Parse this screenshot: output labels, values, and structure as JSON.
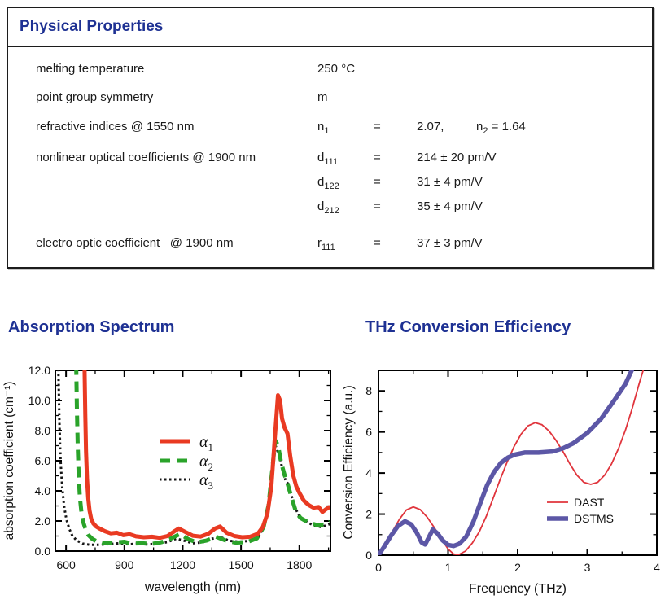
{
  "table": {
    "title": "Physical Properties",
    "rows": [
      {
        "label": "melting temperature",
        "value": "250 °C"
      },
      {
        "label": "point group symmetry",
        "value": "m"
      },
      {
        "label": "refractive indices @ 1550 nm",
        "sym_base": "n",
        "sym_sub": "1",
        "eq": "=",
        "value": "2.07,",
        "extra": {
          "sym_base": "n",
          "sym_sub": "2",
          "eq": " = ",
          "value": "1.64"
        }
      },
      {
        "label": "nonlinear optical coefficients @ 1900 nm",
        "entries": [
          {
            "sym_base": "d",
            "sym_sub": "111",
            "eq": "=",
            "value": "214 ± 20 pm/V"
          },
          {
            "sym_base": "d",
            "sym_sub": "122",
            "eq": "=",
            "value": "31 ± 4 pm/V"
          },
          {
            "sym_base": "d",
            "sym_sub": "212",
            "eq": "=",
            "value": "35 ± 4 pm/V"
          }
        ]
      },
      {
        "label": "electro optic coefficient   @ 1900 nm",
        "sym_base": "r",
        "sym_sub": "111",
        "eq": "=",
        "value": "37 ± 3 pm/V"
      }
    ]
  },
  "colors": {
    "heading_blue": "#1e3193",
    "text": "#1a1a1a",
    "alpha1_red": "#e93a22",
    "alpha2_green": "#2aa32a",
    "alpha3_black": "#151515",
    "dast_red": "#e0343c",
    "dstms_purple": "#5c57a6"
  },
  "chart_data": [
    {
      "type": "line",
      "title": "Absorption Spectrum",
      "xlabel": "wavelength (nm)",
      "ylabel": "absorption coefficient (cm⁻¹)",
      "xlim": [
        545,
        1960
      ],
      "ylim": [
        0,
        12
      ],
      "grid": false,
      "legend_position": "inside center-left",
      "x_ticks": [
        600,
        900,
        1200,
        1500,
        1800
      ],
      "x_tick_labels": [
        "600",
        "900",
        "1200",
        "1500",
        "1800"
      ],
      "x_minor_ticks": [
        750,
        1050,
        1350,
        1650,
        1950
      ],
      "y_ticks": [
        0,
        2,
        4,
        6,
        8,
        10,
        12
      ],
      "y_tick_labels": [
        "0.0",
        "2.0",
        "4.0",
        "6.0",
        "8.0",
        "10.0",
        "12.0"
      ],
      "y_minor_ticks": [
        1,
        3,
        5,
        7,
        9,
        11
      ],
      "series": [
        {
          "name": "alpha1",
          "legend_base": "α",
          "legend_sub": "1",
          "color": "#e93a22",
          "width": 5,
          "dash": null,
          "points": [
            [
              695,
              12.4
            ],
            [
              699,
              9.0
            ],
            [
              703,
              6.6
            ],
            [
              708,
              4.8
            ],
            [
              714,
              3.5
            ],
            [
              721,
              2.7
            ],
            [
              729,
              2.15
            ],
            [
              741,
              1.82
            ],
            [
              756,
              1.62
            ],
            [
              776,
              1.47
            ],
            [
              800,
              1.32
            ],
            [
              830,
              1.18
            ],
            [
              862,
              1.22
            ],
            [
              895,
              1.06
            ],
            [
              926,
              1.12
            ],
            [
              960,
              0.98
            ],
            [
              1000,
              0.92
            ],
            [
              1042,
              0.95
            ],
            [
              1082,
              0.88
            ],
            [
              1122,
              1.0
            ],
            [
              1156,
              1.3
            ],
            [
              1180,
              1.5
            ],
            [
              1212,
              1.28
            ],
            [
              1252,
              1.02
            ],
            [
              1292,
              0.96
            ],
            [
              1332,
              1.15
            ],
            [
              1366,
              1.5
            ],
            [
              1392,
              1.63
            ],
            [
              1426,
              1.22
            ],
            [
              1466,
              1.0
            ],
            [
              1506,
              0.92
            ],
            [
              1546,
              0.95
            ],
            [
              1586,
              1.15
            ],
            [
              1612,
              1.6
            ],
            [
              1636,
              2.5
            ],
            [
              1656,
              4.3
            ],
            [
              1672,
              7.2
            ],
            [
              1690,
              10.35
            ],
            [
              1701,
              10.0
            ],
            [
              1711,
              8.8
            ],
            [
              1724,
              8.2
            ],
            [
              1739,
              7.8
            ],
            [
              1753,
              6.3
            ],
            [
              1769,
              5.0
            ],
            [
              1784,
              4.3
            ],
            [
              1801,
              3.85
            ],
            [
              1823,
              3.35
            ],
            [
              1849,
              3.05
            ],
            [
              1873,
              2.88
            ],
            [
              1899,
              2.93
            ],
            [
              1919,
              2.6
            ],
            [
              1939,
              2.8
            ],
            [
              1958,
              2.95
            ]
          ]
        },
        {
          "name": "alpha2",
          "legend_base": "α",
          "legend_sub": "2",
          "color": "#2aa32a",
          "width": 5,
          "dash": "13 8",
          "points": [
            [
              652,
              12.4
            ],
            [
              656,
              9.4
            ],
            [
              660,
              7.0
            ],
            [
              665,
              5.0
            ],
            [
              671,
              3.6
            ],
            [
              679,
              2.6
            ],
            [
              689,
              1.9
            ],
            [
              701,
              1.42
            ],
            [
              716,
              1.05
            ],
            [
              736,
              0.8
            ],
            [
              762,
              0.62
            ],
            [
              792,
              0.52
            ],
            [
              850,
              0.56
            ],
            [
              900,
              0.62
            ],
            [
              942,
              0.5
            ],
            [
              992,
              0.52
            ],
            [
              1042,
              0.48
            ],
            [
              1092,
              0.6
            ],
            [
              1142,
              0.85
            ],
            [
              1188,
              1.15
            ],
            [
              1227,
              0.8
            ],
            [
              1272,
              0.58
            ],
            [
              1322,
              0.7
            ],
            [
              1372,
              0.95
            ],
            [
              1422,
              0.7
            ],
            [
              1472,
              0.56
            ],
            [
              1532,
              0.6
            ],
            [
              1582,
              0.85
            ],
            [
              1616,
              1.6
            ],
            [
              1641,
              3.0
            ],
            [
              1659,
              5.2
            ],
            [
              1676,
              7.35
            ],
            [
              1691,
              7.0
            ],
            [
              1706,
              5.9
            ],
            [
              1723,
              5.1
            ],
            [
              1741,
              4.4
            ],
            [
              1761,
              3.5
            ],
            [
              1783,
              2.6
            ],
            [
              1806,
              2.2
            ],
            [
              1846,
              1.9
            ],
            [
              1886,
              1.75
            ],
            [
              1926,
              1.72
            ],
            [
              1957,
              1.95
            ]
          ]
        },
        {
          "name": "alpha3",
          "legend_base": "α",
          "legend_sub": "3",
          "color": "#151515",
          "width": 3,
          "dash": "2.5 3.5",
          "points": [
            [
              560,
              12.4
            ],
            [
              566,
              8.5
            ],
            [
              572,
              6.0
            ],
            [
              580,
              4.3
            ],
            [
              590,
              3.0
            ],
            [
              602,
              2.1
            ],
            [
              616,
              1.5
            ],
            [
              633,
              1.0
            ],
            [
              656,
              0.7
            ],
            [
              686,
              0.5
            ],
            [
              721,
              0.42
            ],
            [
              761,
              0.42
            ],
            [
              821,
              0.46
            ],
            [
              871,
              0.52
            ],
            [
              921,
              0.45
            ],
            [
              971,
              0.5
            ],
            [
              1021,
              0.44
            ],
            [
              1071,
              0.5
            ],
            [
              1121,
              0.6
            ],
            [
              1166,
              0.82
            ],
            [
              1201,
              0.72
            ],
            [
              1251,
              0.52
            ],
            [
              1301,
              0.58
            ],
            [
              1351,
              0.82
            ],
            [
              1396,
              0.92
            ],
            [
              1441,
              0.68
            ],
            [
              1491,
              0.62
            ],
            [
              1546,
              0.68
            ],
            [
              1591,
              0.95
            ],
            [
              1621,
              1.7
            ],
            [
              1646,
              3.3
            ],
            [
              1663,
              6.2
            ],
            [
              1673,
              7.15
            ],
            [
              1686,
              6.7
            ],
            [
              1701,
              6.2
            ],
            [
              1716,
              5.2
            ],
            [
              1729,
              4.7
            ],
            [
              1743,
              4.45
            ],
            [
              1759,
              3.7
            ],
            [
              1779,
              2.85
            ],
            [
              1801,
              2.3
            ],
            [
              1836,
              1.95
            ],
            [
              1871,
              1.72
            ],
            [
              1911,
              1.6
            ],
            [
              1941,
              1.72
            ],
            [
              1958,
              1.8
            ]
          ]
        }
      ]
    },
    {
      "type": "line",
      "title": "THz Conversion Efficiency",
      "xlabel": "Frequency (THz)",
      "ylabel": "Conversion Efficiency (a.u.)",
      "xlim": [
        0,
        4
      ],
      "ylim": [
        0,
        9
      ],
      "grid": false,
      "legend_position": "inside lower-right",
      "x_ticks": [
        0,
        1,
        2,
        3,
        4
      ],
      "x_tick_labels": [
        "0",
        "1",
        "2",
        "3",
        "4"
      ],
      "x_minor_ticks": [
        0.5,
        1.5,
        2.5,
        3.5
      ],
      "y_ticks": [
        0,
        2,
        4,
        6,
        8
      ],
      "y_tick_labels": [
        "0",
        "2",
        "4",
        "6",
        "8"
      ],
      "y_minor_ticks": [
        1,
        3,
        5,
        7,
        9
      ],
      "series": [
        {
          "name": "DAST",
          "legend_label": "DAST",
          "color": "#e0343c",
          "width": 1.8,
          "dash": null,
          "points": [
            [
              0,
              0
            ],
            [
              0.1,
              0.5
            ],
            [
              0.2,
              1.15
            ],
            [
              0.3,
              1.75
            ],
            [
              0.4,
              2.2
            ],
            [
              0.5,
              2.35
            ],
            [
              0.6,
              2.22
            ],
            [
              0.7,
              1.85
            ],
            [
              0.8,
              1.35
            ],
            [
              0.9,
              0.8
            ],
            [
              1.0,
              0.3
            ],
            [
              1.08,
              0.05
            ],
            [
              1.15,
              0.02
            ],
            [
              1.25,
              0.2
            ],
            [
              1.35,
              0.6
            ],
            [
              1.45,
              1.15
            ],
            [
              1.55,
              1.9
            ],
            [
              1.65,
              2.8
            ],
            [
              1.75,
              3.7
            ],
            [
              1.85,
              4.55
            ],
            [
              1.95,
              5.3
            ],
            [
              2.05,
              5.9
            ],
            [
              2.15,
              6.3
            ],
            [
              2.25,
              6.45
            ],
            [
              2.35,
              6.35
            ],
            [
              2.45,
              6.05
            ],
            [
              2.55,
              5.6
            ],
            [
              2.65,
              5.05
            ],
            [
              2.75,
              4.45
            ],
            [
              2.85,
              3.9
            ],
            [
              2.95,
              3.55
            ],
            [
              3.05,
              3.45
            ],
            [
              3.15,
              3.55
            ],
            [
              3.25,
              3.9
            ],
            [
              3.35,
              4.45
            ],
            [
              3.45,
              5.2
            ],
            [
              3.55,
              6.1
            ],
            [
              3.65,
              7.2
            ],
            [
              3.75,
              8.4
            ],
            [
              3.83,
              9.3
            ]
          ]
        },
        {
          "name": "DSTMS",
          "legend_label": "DSTMS",
          "color": "#5c57a6",
          "width": 5.5,
          "dash": null,
          "points": [
            [
              0,
              0
            ],
            [
              0.08,
              0.4
            ],
            [
              0.18,
              0.95
            ],
            [
              0.28,
              1.42
            ],
            [
              0.38,
              1.65
            ],
            [
              0.47,
              1.5
            ],
            [
              0.55,
              1.1
            ],
            [
              0.62,
              0.62
            ],
            [
              0.67,
              0.52
            ],
            [
              0.72,
              0.85
            ],
            [
              0.78,
              1.25
            ],
            [
              0.85,
              1.05
            ],
            [
              0.92,
              0.72
            ],
            [
              1.0,
              0.5
            ],
            [
              1.08,
              0.45
            ],
            [
              1.16,
              0.55
            ],
            [
              1.26,
              0.9
            ],
            [
              1.36,
              1.6
            ],
            [
              1.46,
              2.5
            ],
            [
              1.56,
              3.4
            ],
            [
              1.66,
              4.05
            ],
            [
              1.76,
              4.5
            ],
            [
              1.86,
              4.75
            ],
            [
              1.96,
              4.9
            ],
            [
              2.1,
              5.0
            ],
            [
              2.3,
              5.0
            ],
            [
              2.5,
              5.05
            ],
            [
              2.65,
              5.2
            ],
            [
              2.8,
              5.45
            ],
            [
              3.0,
              5.95
            ],
            [
              3.2,
              6.65
            ],
            [
              3.4,
              7.6
            ],
            [
              3.55,
              8.35
            ],
            [
              3.68,
              9.3
            ]
          ]
        }
      ]
    }
  ]
}
